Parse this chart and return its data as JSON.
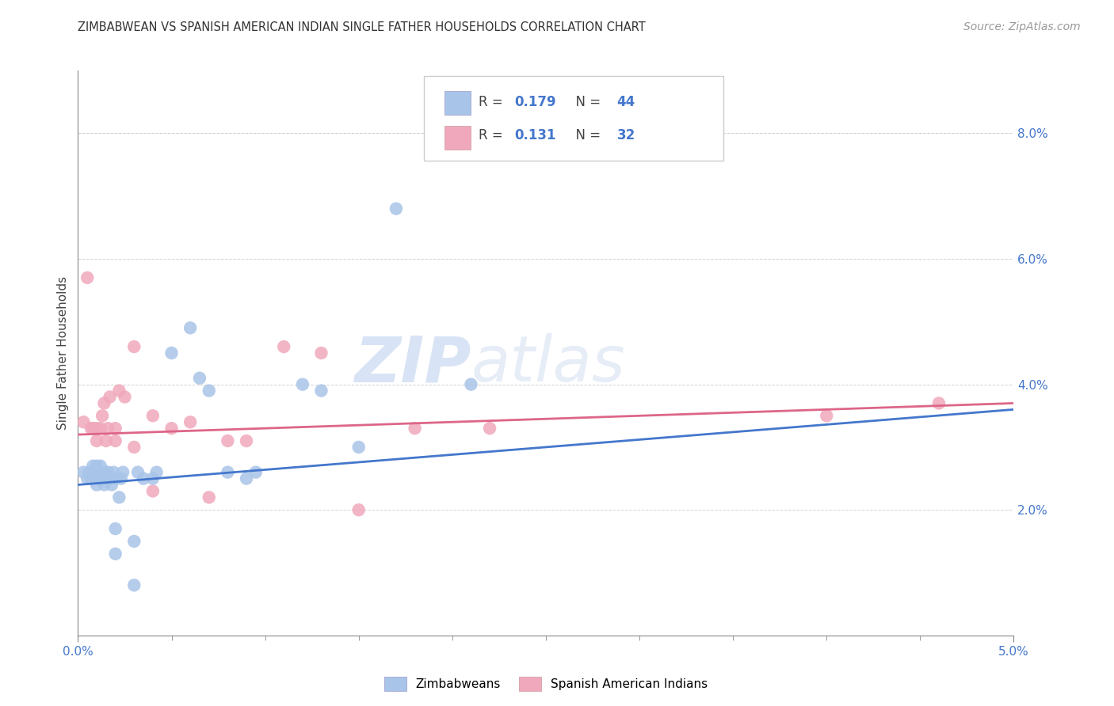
{
  "title": "ZIMBABWEAN VS SPANISH AMERICAN INDIAN SINGLE FATHER HOUSEHOLDS CORRELATION CHART",
  "source": "Source: ZipAtlas.com",
  "ylabel": "Single Father Households",
  "xlim": [
    0.0,
    0.05
  ],
  "ylim": [
    0.0,
    0.09
  ],
  "blue_R": "0.179",
  "blue_N": "44",
  "pink_R": "0.131",
  "pink_N": "32",
  "blue_color": "#a8c4e8",
  "pink_color": "#f0a8bc",
  "blue_line_color": "#4477cc",
  "pink_line_color": "#dd6688",
  "background_color": "#ffffff",
  "grid_color": "#cccccc",
  "watermark_color": "#d0dff5",
  "legend_label_blue": "Zimbabweans",
  "legend_label_pink": "Spanish American Indians",
  "blue_scatter_x": [
    0.0003,
    0.0005,
    0.0006,
    0.0007,
    0.0008,
    0.0008,
    0.0009,
    0.001,
    0.001,
    0.001,
    0.0012,
    0.0012,
    0.0013,
    0.0014,
    0.0015,
    0.0016,
    0.0016,
    0.0017,
    0.0018,
    0.0019,
    0.002,
    0.002,
    0.002,
    0.0022,
    0.0023,
    0.0024,
    0.003,
    0.003,
    0.0032,
    0.0035,
    0.004,
    0.0042,
    0.005,
    0.006,
    0.0065,
    0.007,
    0.008,
    0.009,
    0.0095,
    0.012,
    0.013,
    0.015,
    0.017,
    0.021
  ],
  "blue_scatter_y": [
    0.026,
    0.025,
    0.026,
    0.025,
    0.025,
    0.027,
    0.026,
    0.024,
    0.026,
    0.027,
    0.025,
    0.027,
    0.025,
    0.024,
    0.026,
    0.025,
    0.026,
    0.025,
    0.024,
    0.026,
    0.013,
    0.017,
    0.025,
    0.022,
    0.025,
    0.026,
    0.008,
    0.015,
    0.026,
    0.025,
    0.025,
    0.026,
    0.045,
    0.049,
    0.041,
    0.039,
    0.026,
    0.025,
    0.026,
    0.04,
    0.039,
    0.03,
    0.068,
    0.04
  ],
  "pink_scatter_x": [
    0.0003,
    0.0005,
    0.0007,
    0.0008,
    0.001,
    0.001,
    0.0012,
    0.0013,
    0.0014,
    0.0015,
    0.0016,
    0.0017,
    0.002,
    0.002,
    0.0022,
    0.0025,
    0.003,
    0.003,
    0.004,
    0.004,
    0.005,
    0.006,
    0.007,
    0.008,
    0.009,
    0.011,
    0.013,
    0.015,
    0.018,
    0.022,
    0.04,
    0.046
  ],
  "pink_scatter_y": [
    0.034,
    0.057,
    0.033,
    0.033,
    0.031,
    0.033,
    0.033,
    0.035,
    0.037,
    0.031,
    0.033,
    0.038,
    0.031,
    0.033,
    0.039,
    0.038,
    0.03,
    0.046,
    0.023,
    0.035,
    0.033,
    0.034,
    0.022,
    0.031,
    0.031,
    0.046,
    0.045,
    0.02,
    0.033,
    0.033,
    0.035,
    0.037
  ],
  "blue_line_x0": 0.0,
  "blue_line_y0": 0.024,
  "blue_line_x1": 0.05,
  "blue_line_y1": 0.036,
  "pink_line_x0": 0.0,
  "pink_line_y0": 0.032,
  "pink_line_x1": 0.05,
  "pink_line_y1": 0.037
}
